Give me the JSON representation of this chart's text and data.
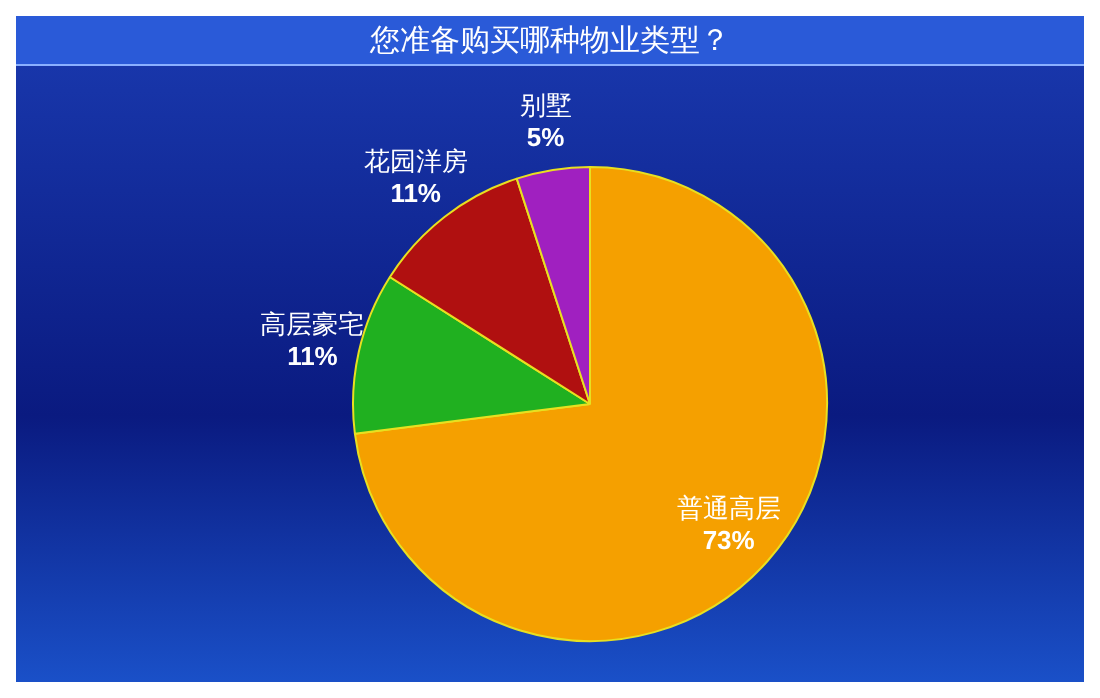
{
  "chart_data": {
    "type": "pie",
    "title": "您准备购买哪种物业类型？",
    "categories": [
      "普通高层",
      "高层豪宅",
      "花园洋房",
      "别墅"
    ],
    "values": [
      73,
      11,
      11,
      5
    ],
    "colors": [
      "#f5a000",
      "#20b020",
      "#b01010",
      "#a020c0"
    ],
    "value_labels": [
      "73%",
      "11%",
      "11%",
      "5%"
    ],
    "legend": false
  }
}
